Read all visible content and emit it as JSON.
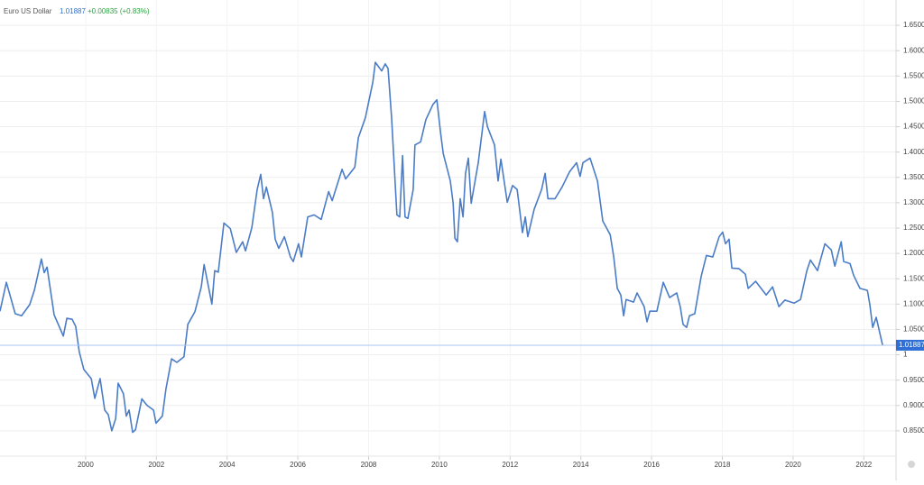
{
  "chart_data": {
    "type": "line",
    "title": "Euro US Dollar",
    "last": 1.01887,
    "change": "+0.00835 (+0.83%)",
    "xlim": [
      1997.58,
      2022.91
    ],
    "xticks": [
      2000,
      2002,
      2004,
      2006,
      2008,
      2010,
      2012,
      2014,
      2016,
      2018,
      2020,
      2022
    ],
    "ylim": [
      0.8,
      1.7
    ],
    "yticks": [
      {
        "value": 0.85,
        "label": "0.8500"
      },
      {
        "value": 0.9,
        "label": "0.9000"
      },
      {
        "value": 0.95,
        "label": "0.9500"
      },
      1,
      {
        "value": 1.05,
        "label": "1.0500"
      },
      {
        "value": 1.1,
        "label": "1.1000"
      },
      {
        "value": 1.15,
        "label": "1.1500"
      },
      {
        "value": 1.2,
        "label": "1.2000"
      },
      {
        "value": 1.25,
        "label": "1.2500"
      },
      {
        "value": 1.3,
        "label": "1.3000"
      },
      {
        "value": 1.35,
        "label": "1.3500"
      },
      {
        "value": 1.4,
        "label": "1.4000"
      },
      {
        "value": 1.45,
        "label": "1.4500"
      },
      {
        "value": 1.5,
        "label": "1.5000"
      },
      {
        "value": 1.55,
        "label": "1.5500"
      },
      {
        "value": 1.6,
        "label": "1.6000"
      },
      {
        "value": 1.65,
        "label": "1.6500"
      }
    ],
    "grid": true,
    "x": [
      1997.58,
      1997.76,
      1998.01,
      1998.19,
      1998.42,
      1998.55,
      1998.75,
      1998.83,
      1998.91,
      1999.11,
      1999.37,
      1999.47,
      1999.62,
      1999.72,
      1999.82,
      1999.95,
      2000.16,
      2000.26,
      2000.41,
      2000.54,
      2000.64,
      2000.74,
      2000.85,
      2000.92,
      2001.07,
      2001.15,
      2001.23,
      2001.33,
      2001.41,
      2001.59,
      2001.74,
      2001.92,
      2001.99,
      2002.17,
      2002.27,
      2002.43,
      2002.58,
      2002.78,
      2002.89,
      2003.09,
      2003.27,
      2003.35,
      2003.57,
      2003.65,
      2003.75,
      2003.91,
      2004.09,
      2004.26,
      2004.44,
      2004.52,
      2004.7,
      2004.85,
      2004.95,
      2005.03,
      2005.11,
      2005.28,
      2005.36,
      2005.46,
      2005.62,
      2005.79,
      2005.87,
      2006.02,
      2006.1,
      2006.28,
      2006.46,
      2006.66,
      2006.87,
      2006.97,
      2007.25,
      2007.35,
      2007.61,
      2007.71,
      2007.91,
      2008.12,
      2008.19,
      2008.37,
      2008.47,
      2008.55,
      2008.65,
      2008.8,
      2008.88,
      2008.96,
      2009.03,
      2009.11,
      2009.26,
      2009.31,
      2009.47,
      2009.62,
      2009.82,
      2009.93,
      2010.03,
      2010.11,
      2010.31,
      2010.39,
      2010.44,
      2010.51,
      2010.59,
      2010.67,
      2010.74,
      2010.82,
      2010.9,
      2011.1,
      2011.28,
      2011.36,
      2011.56,
      2011.66,
      2011.74,
      2011.92,
      2012.07,
      2012.2,
      2012.35,
      2012.43,
      2012.5,
      2012.68,
      2012.89,
      2012.99,
      2013.07,
      2013.27,
      2013.47,
      2013.68,
      2013.88,
      2013.98,
      2014.06,
      2014.26,
      2014.47,
      2014.62,
      2014.83,
      2014.93,
      2015.03,
      2015.13,
      2015.21,
      2015.28,
      2015.49,
      2015.59,
      2015.79,
      2015.87,
      2015.95,
      2016.15,
      2016.33,
      2016.51,
      2016.71,
      2016.81,
      2016.89,
      2016.99,
      2017.07,
      2017.22,
      2017.4,
      2017.55,
      2017.73,
      2017.91,
      2018.01,
      2018.09,
      2018.19,
      2018.27,
      2018.47,
      2018.65,
      2018.73,
      2018.94,
      2019.24,
      2019.42,
      2019.6,
      2019.77,
      2020.03,
      2020.21,
      2020.39,
      2020.49,
      2020.69,
      2020.9,
      2021.08,
      2021.18,
      2021.36,
      2021.43,
      2021.61,
      2021.71,
      2021.89,
      2022.1,
      2022.17,
      2022.25,
      2022.35,
      2022.53
    ],
    "series": [
      {
        "name": "Euro US Dollar",
        "color": "#4a7cc7",
        "values": [
          1.086,
          1.143,
          1.081,
          1.077,
          1.099,
          1.127,
          1.189,
          1.162,
          1.173,
          1.079,
          1.037,
          1.072,
          1.07,
          1.056,
          1.006,
          0.971,
          0.953,
          0.914,
          0.953,
          0.891,
          0.882,
          0.85,
          0.874,
          0.944,
          0.923,
          0.879,
          0.891,
          0.847,
          0.852,
          0.913,
          0.9,
          0.891,
          0.865,
          0.879,
          0.932,
          0.992,
          0.985,
          0.996,
          1.06,
          1.085,
          1.134,
          1.178,
          1.1,
          1.166,
          1.163,
          1.26,
          1.249,
          1.202,
          1.223,
          1.205,
          1.251,
          1.326,
          1.356,
          1.308,
          1.331,
          1.281,
          1.228,
          1.21,
          1.233,
          1.193,
          1.184,
          1.219,
          1.193,
          1.272,
          1.276,
          1.267,
          1.322,
          1.304,
          1.366,
          1.347,
          1.37,
          1.428,
          1.468,
          1.538,
          1.577,
          1.56,
          1.574,
          1.565,
          1.468,
          1.276,
          1.272,
          1.393,
          1.272,
          1.269,
          1.326,
          1.414,
          1.42,
          1.464,
          1.494,
          1.503,
          1.441,
          1.397,
          1.343,
          1.299,
          1.23,
          1.223,
          1.308,
          1.272,
          1.358,
          1.388,
          1.299,
          1.379,
          1.48,
          1.45,
          1.414,
          1.343,
          1.386,
          1.301,
          1.334,
          1.326,
          1.241,
          1.272,
          1.233,
          1.287,
          1.326,
          1.358,
          1.308,
          1.308,
          1.331,
          1.361,
          1.379,
          1.352,
          1.379,
          1.388,
          1.343,
          1.264,
          1.237,
          1.193,
          1.131,
          1.118,
          1.077,
          1.109,
          1.104,
          1.122,
          1.095,
          1.065,
          1.086,
          1.086,
          1.143,
          1.113,
          1.122,
          1.095,
          1.06,
          1.054,
          1.077,
          1.081,
          1.154,
          1.196,
          1.193,
          1.233,
          1.242,
          1.219,
          1.228,
          1.171,
          1.17,
          1.159,
          1.131,
          1.145,
          1.118,
          1.134,
          1.095,
          1.108,
          1.102,
          1.109,
          1.166,
          1.187,
          1.166,
          1.219,
          1.207,
          1.175,
          1.223,
          1.184,
          1.18,
          1.157,
          1.131,
          1.127,
          1.099,
          1.054,
          1.074,
          1.019
        ]
      }
    ]
  }
}
